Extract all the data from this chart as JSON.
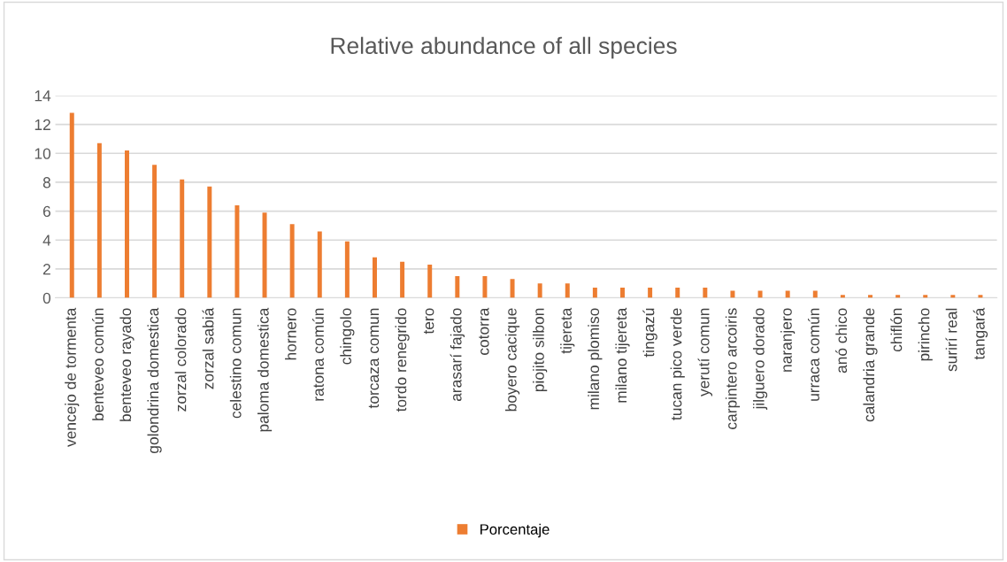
{
  "chart_data": {
    "type": "bar",
    "title": "Relative abundance of all species",
    "categories": [
      "vencejo de tormenta",
      "benteveo común",
      "benteveo rayado",
      "golondrina domestica",
      "zorzal colorado",
      "zorzal sabiá",
      "celestino comun",
      "paloma domestica",
      "hornero",
      "ratona común",
      "chingolo",
      "torcaza comun",
      "tordo renegrido",
      "tero",
      "arasarí fajado",
      "cotorra",
      "boyero cacique",
      "piojito silbon",
      "tijereta",
      "milano plomiso",
      "milano tijereta",
      "tingazú",
      "tucan pico verde",
      "yerutí comun",
      "carpintero arcoiris",
      "jilguero dorado",
      "naranjero",
      "urraca común",
      "anó chico",
      "calandria grande",
      "chiflón",
      "pirincho",
      "surirí real",
      "tangará"
    ],
    "series": [
      {
        "name": "Porcentaje",
        "color": "#ed7d31",
        "values": [
          12.8,
          10.7,
          10.2,
          9.2,
          8.2,
          7.7,
          6.4,
          5.9,
          5.1,
          4.6,
          3.9,
          2.8,
          2.5,
          2.3,
          1.5,
          1.5,
          1.3,
          1.0,
          1.0,
          0.7,
          0.7,
          0.7,
          0.7,
          0.7,
          0.5,
          0.5,
          0.5,
          0.5,
          0.2,
          0.2,
          0.2,
          0.2,
          0.2,
          0.2
        ]
      }
    ],
    "ylim": [
      0,
      14
    ],
    "yticks": [
      0,
      2,
      4,
      6,
      8,
      10,
      12,
      14
    ],
    "grid": "y",
    "legend": "bottom"
  }
}
